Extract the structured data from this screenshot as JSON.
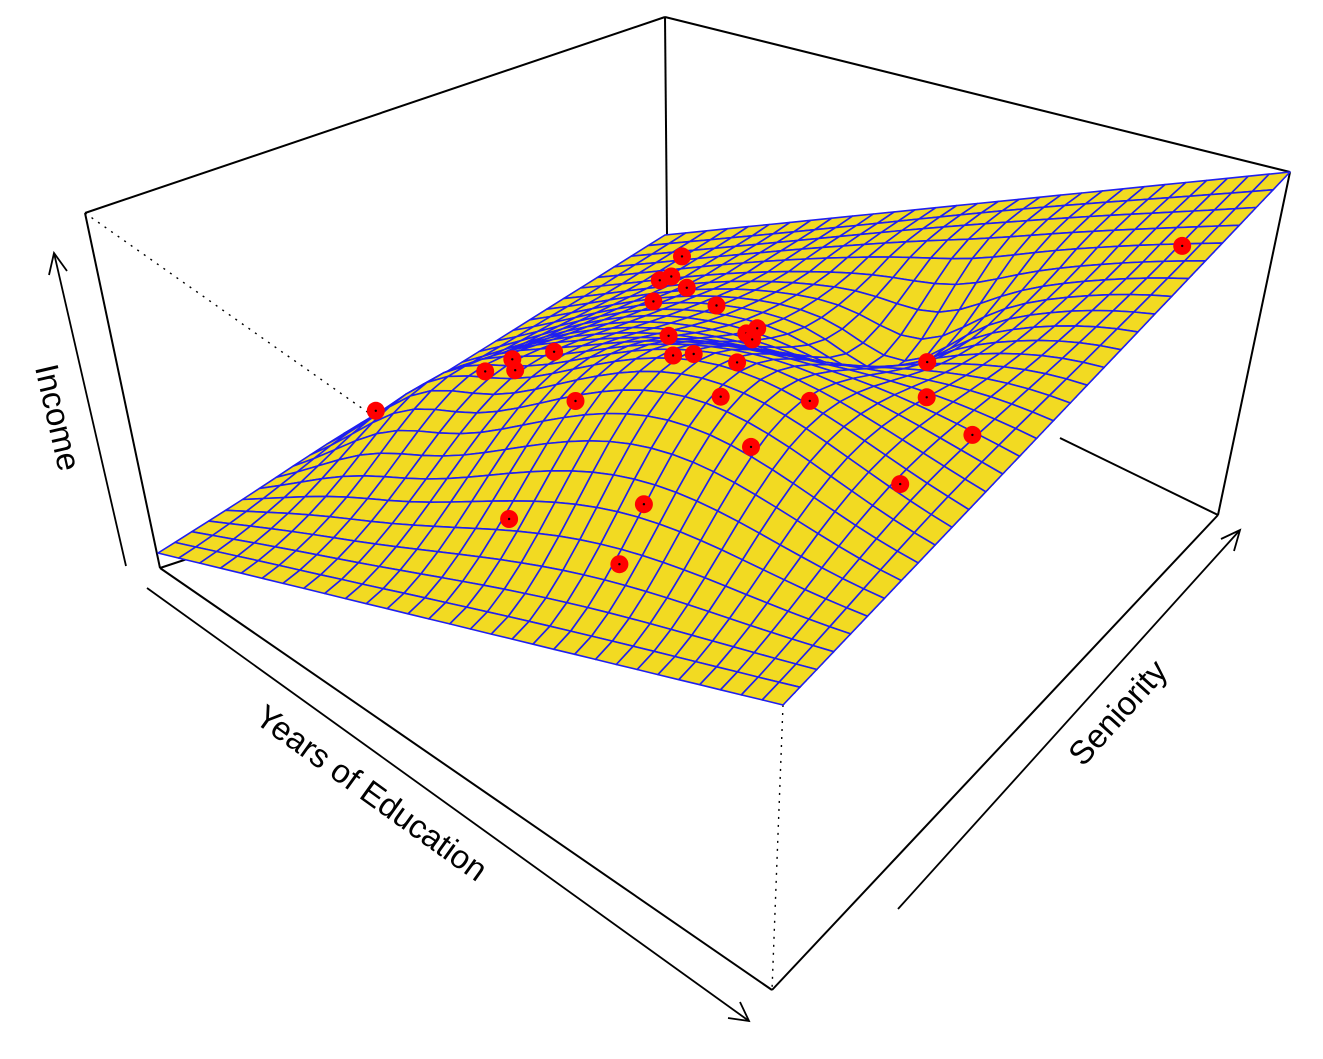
{
  "chart_data": {
    "type": "surface-3d",
    "title": "",
    "axes": {
      "x_label": "Years of Education",
      "y_label": "Seniority",
      "z_label": "Income"
    },
    "ticks_shown": false,
    "grid": false,
    "box": true,
    "surface": {
      "fill_color": "#F2DA22",
      "mesh_color": "#1F1FF0",
      "grid_lines": 30,
      "description_of_shape": "income rises with years of education and with seniority"
    },
    "points": {
      "color": "#FF0000",
      "count": 30
    }
  }
}
